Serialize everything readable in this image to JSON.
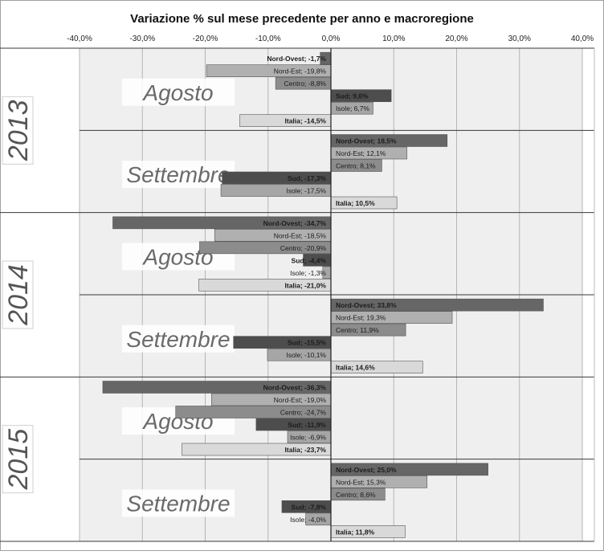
{
  "chart_data": {
    "type": "bar",
    "orientation": "horizontal",
    "title": "Variazione % sul mese precedente per anno e macroregione",
    "x_ticks": [
      "-40,0%",
      "-30,0%",
      "-20,0%",
      "-10,0%",
      "0,0%",
      "10,0%",
      "20,0%",
      "30,0%",
      "40,0%"
    ],
    "xlim": [
      -40,
      40
    ],
    "regions": [
      "Nord-Ovest",
      "Nord-Est",
      "Centro",
      "Sud",
      "Isole",
      "Italia"
    ],
    "colors": {
      "Nord-Ovest": "#666666",
      "Nord-Est": "#b0b0b0",
      "Centro": "#8c8c8c",
      "Sud": "#4d4d4d",
      "Isole": "#a6a6a6",
      "Italia": "#d9d9d9"
    },
    "groups": [
      {
        "year": "2013",
        "months": [
          {
            "month": "Agosto",
            "values": [
              {
                "region": "Nord-Ovest",
                "value": -1.7,
                "label": "Nord-Ovest; -1,7%"
              },
              {
                "region": "Nord-Est",
                "value": -19.8,
                "label": "Nord-Est; -19,8%"
              },
              {
                "region": "Centro",
                "value": -8.8,
                "label": "Centro; -8,8%"
              },
              {
                "region": "Sud",
                "value": 9.6,
                "label": "Sud; 9,6%"
              },
              {
                "region": "Isole",
                "value": 6.7,
                "label": "Isole; 6,7%"
              },
              {
                "region": "Italia",
                "value": -14.5,
                "label": "Italia; -14,5%"
              }
            ]
          },
          {
            "month": "Settembre",
            "values": [
              {
                "region": "Nord-Ovest",
                "value": 18.5,
                "label": "Nord-Ovest; 18,5%"
              },
              {
                "region": "Nord-Est",
                "value": 12.1,
                "label": "Nord-Est; 12,1%"
              },
              {
                "region": "Centro",
                "value": 8.1,
                "label": "Centro; 8,1%"
              },
              {
                "region": "Sud",
                "value": -17.3,
                "label": "Sud; -17,3%"
              },
              {
                "region": "Isole",
                "value": -17.5,
                "label": "Isole; -17,5%"
              },
              {
                "region": "Italia",
                "value": 10.5,
                "label": "Italia; 10,5%"
              }
            ]
          }
        ]
      },
      {
        "year": "2014",
        "months": [
          {
            "month": "Agosto",
            "values": [
              {
                "region": "Nord-Ovest",
                "value": -34.7,
                "label": "Nord-Ovest; -34,7%"
              },
              {
                "region": "Nord-Est",
                "value": -18.5,
                "label": "Nord-Est; -18,5%"
              },
              {
                "region": "Centro",
                "value": -20.9,
                "label": "Centro; -20,9%"
              },
              {
                "region": "Sud",
                "value": -4.4,
                "label": "Sud; -4,4%"
              },
              {
                "region": "Isole",
                "value": -1.3,
                "label": "Isole; -1,3%"
              },
              {
                "region": "Italia",
                "value": -21.0,
                "label": "Italia; -21,0%"
              }
            ]
          },
          {
            "month": "Settembre",
            "values": [
              {
                "region": "Nord-Ovest",
                "value": 33.8,
                "label": "Nord-Ovest; 33,8%"
              },
              {
                "region": "Nord-Est",
                "value": 19.3,
                "label": "Nord-Est; 19,3%"
              },
              {
                "region": "Centro",
                "value": 11.9,
                "label": "Centro; 11,9%"
              },
              {
                "region": "Sud",
                "value": -15.5,
                "label": "Sud; -15,5%"
              },
              {
                "region": "Isole",
                "value": -10.1,
                "label": "Isole; -10,1%"
              },
              {
                "region": "Italia",
                "value": 14.6,
                "label": "Italia; 14,6%"
              }
            ]
          }
        ]
      },
      {
        "year": "2015",
        "months": [
          {
            "month": "Agosto",
            "values": [
              {
                "region": "Nord-Ovest",
                "value": -36.3,
                "label": "Nord-Ovest; -36,3%"
              },
              {
                "region": "Nord-Est",
                "value": -19.0,
                "label": "Nord-Est; -19,0%"
              },
              {
                "region": "Centro",
                "value": -24.7,
                "label": "Centro; -24,7%"
              },
              {
                "region": "Sud",
                "value": -11.9,
                "label": "Sud; -11,9%"
              },
              {
                "region": "Isole",
                "value": -6.9,
                "label": "Isole; -6,9%"
              },
              {
                "region": "Italia",
                "value": -23.7,
                "label": "Italia; -23,7%"
              }
            ]
          },
          {
            "month": "Settembre",
            "values": [
              {
                "region": "Nord-Ovest",
                "value": 25.0,
                "label": "Nord-Ovest; 25,0%"
              },
              {
                "region": "Nord-Est",
                "value": 15.3,
                "label": "Nord-Est; 15,3%"
              },
              {
                "region": "Centro",
                "value": 8.6,
                "label": "Centro; 8,6%"
              },
              {
                "region": "Sud",
                "value": -7.8,
                "label": "Sud; -7,8%"
              },
              {
                "region": "Isole",
                "value": -4.0,
                "label": "Isole; -4,0%"
              },
              {
                "region": "Italia",
                "value": 11.8,
                "label": "Italia; 11,8%"
              }
            ]
          }
        ]
      }
    ]
  }
}
